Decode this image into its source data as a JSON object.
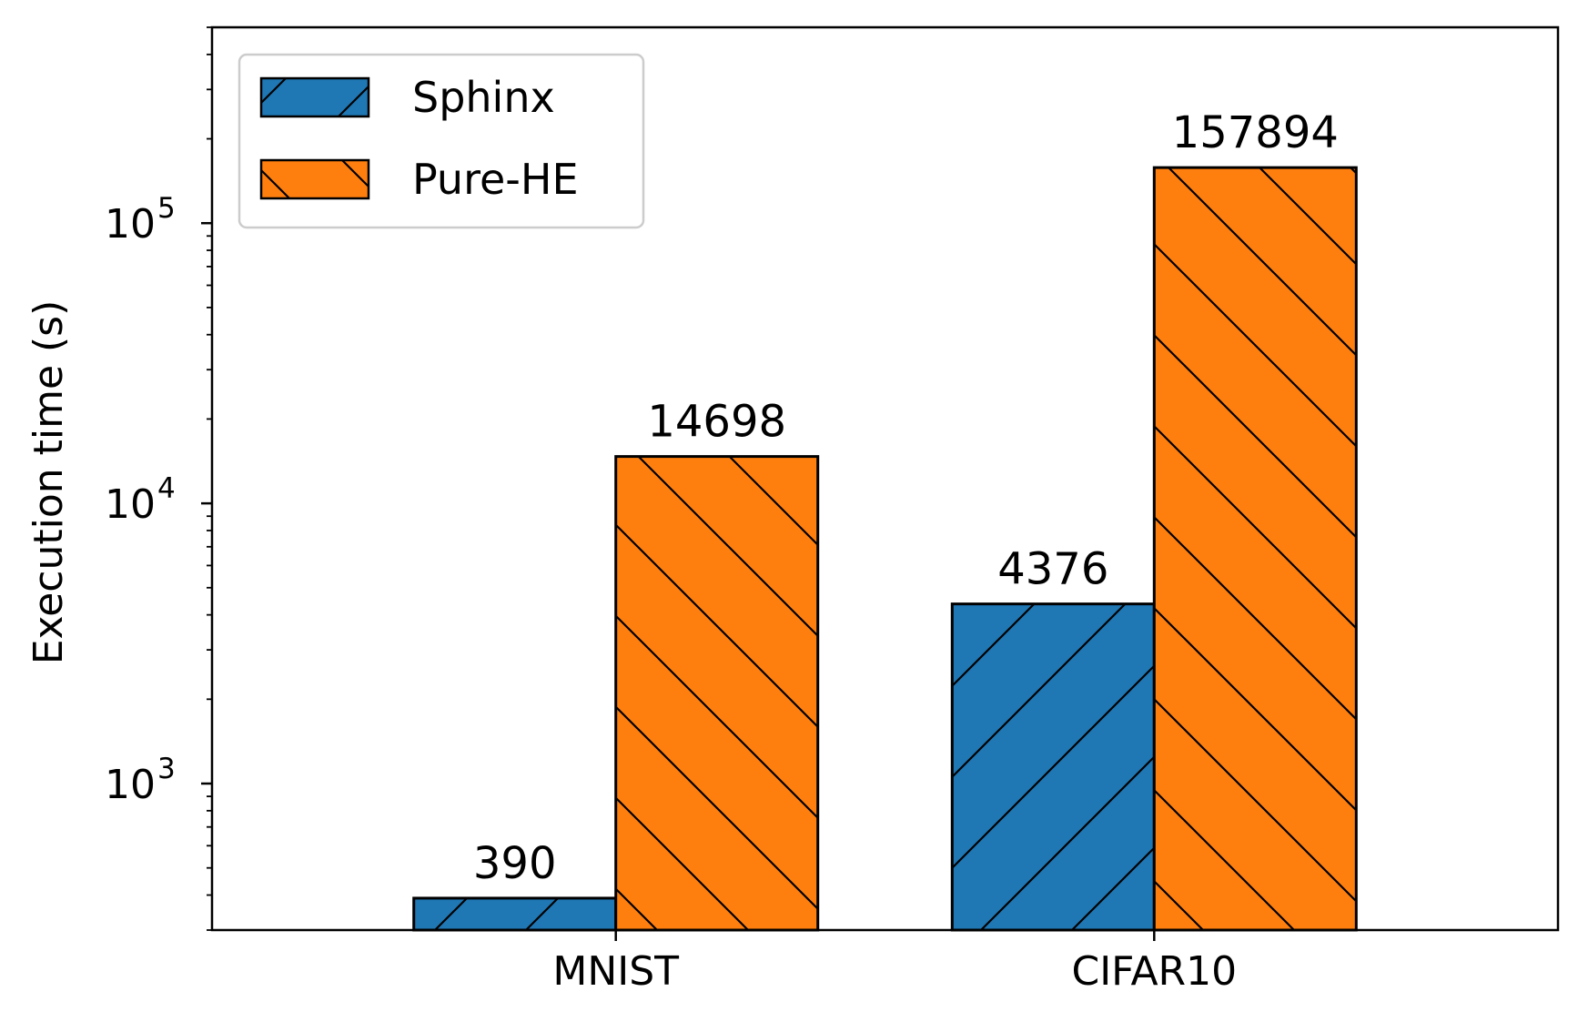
{
  "chart_data": {
    "type": "bar",
    "title": "",
    "xlabel": "",
    "ylabel": "Execution time (s)",
    "yscale": "log",
    "ylim": [
      300,
      500000
    ],
    "categories": [
      "MNIST",
      "CIFAR10"
    ],
    "series": [
      {
        "name": "Sphinx",
        "values": [
          390,
          4376
        ],
        "color": "#1f77b4",
        "hatch": "forward-slash"
      },
      {
        "name": "Pure-HE",
        "values": [
          14698,
          157894
        ],
        "color": "#ff7f0e",
        "hatch": "back-slash"
      }
    ],
    "data_labels": [
      [
        "390",
        "4376"
      ],
      [
        "14698",
        "157894"
      ]
    ],
    "y_ticks": [
      {
        "value": 1000,
        "base": "10",
        "exp": "3"
      },
      {
        "value": 10000,
        "base": "10",
        "exp": "4"
      },
      {
        "value": 100000,
        "base": "10",
        "exp": "5"
      }
    ],
    "legend_position": "top-left",
    "grid": false
  }
}
